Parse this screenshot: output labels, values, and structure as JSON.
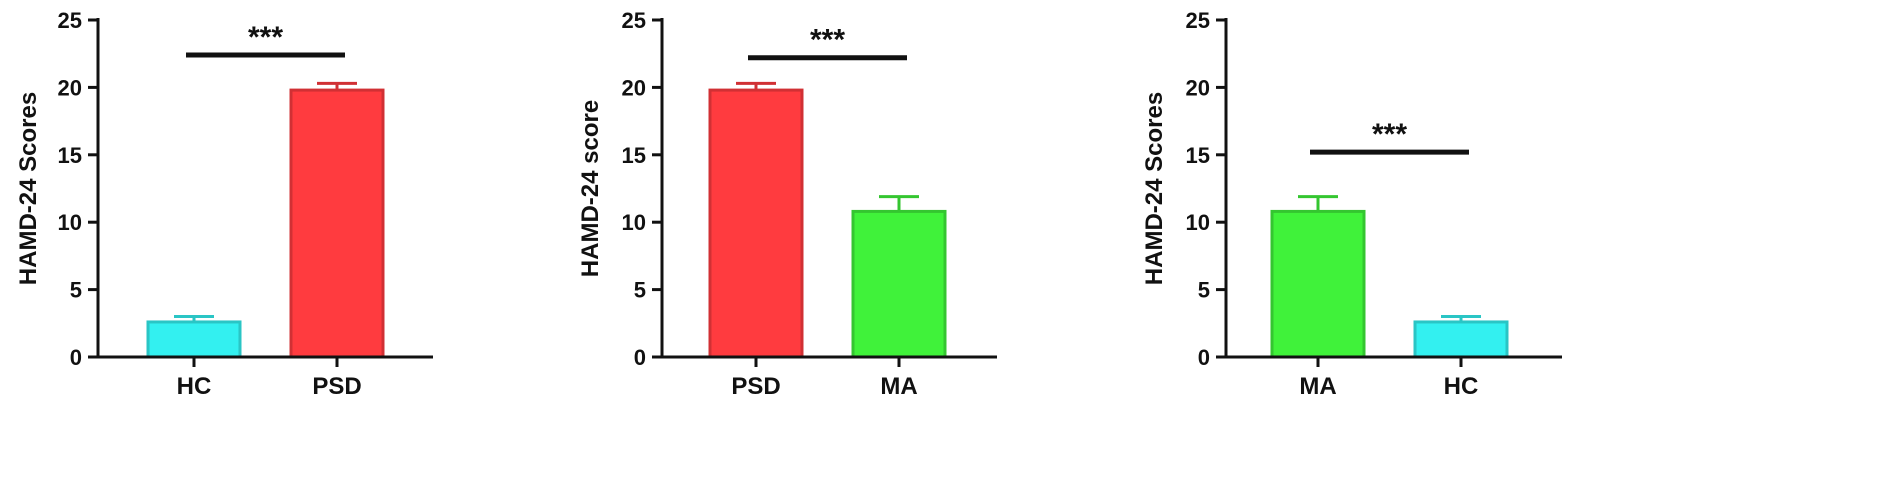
{
  "chart_data": [
    {
      "type": "bar",
      "categories": [
        "HC",
        "PSD"
      ],
      "values": [
        2.6,
        19.8
      ],
      "errors": [
        0.4,
        0.5
      ],
      "colors": [
        "#33F0F0",
        "#FF3B3F"
      ],
      "ylabel": "HAMD-24 Scores",
      "ylim": [
        0,
        25
      ],
      "yticks": [
        "0",
        "5",
        "10",
        "15",
        "20",
        "25"
      ],
      "significance": {
        "from": "HC",
        "to": "PSD",
        "label": "***",
        "y": 22.4
      }
    },
    {
      "type": "bar",
      "categories": [
        "PSD",
        "MA"
      ],
      "values": [
        19.8,
        10.8
      ],
      "errors": [
        0.5,
        1.1
      ],
      "colors": [
        "#FF3B3F",
        "#40F23A"
      ],
      "ylabel": "HAMD-24 score",
      "ylim": [
        0,
        25
      ],
      "yticks": [
        "0",
        "5",
        "10",
        "15",
        "20",
        "25"
      ],
      "significance": {
        "from": "PSD",
        "to": "MA",
        "label": "***",
        "y": 22.2
      }
    },
    {
      "type": "bar",
      "categories": [
        "MA",
        "HC"
      ],
      "values": [
        10.8,
        2.6
      ],
      "errors": [
        1.1,
        0.4
      ],
      "colors": [
        "#40F23A",
        "#33F0F0"
      ],
      "ylabel": "HAMD-24 Scores",
      "ylim": [
        0,
        25
      ],
      "yticks": [
        "0",
        "5",
        "10",
        "15",
        "20",
        "25"
      ],
      "significance": {
        "from": "MA",
        "to": "HC",
        "label": "***",
        "y": 15.2
      }
    }
  ]
}
